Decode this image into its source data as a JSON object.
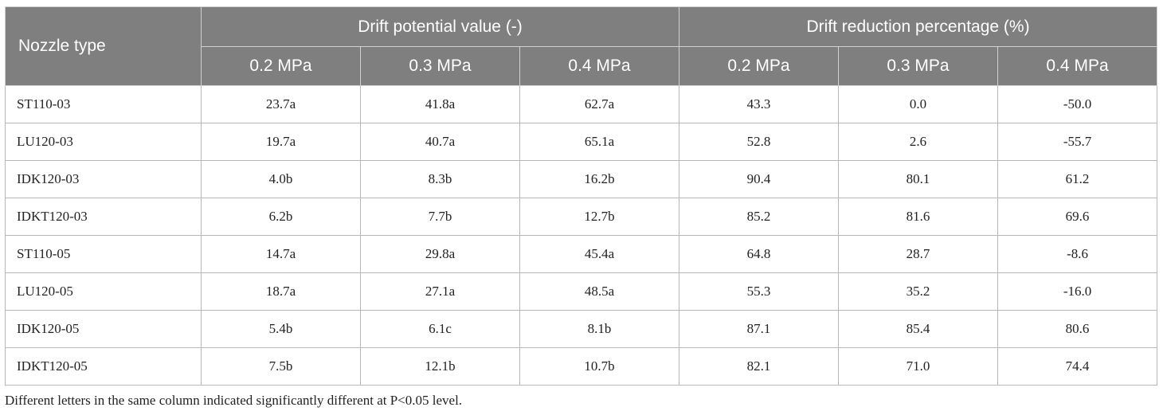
{
  "table": {
    "row_header": "Nozzle type",
    "groups": [
      {
        "label": "Drift potential value (-)"
      },
      {
        "label": "Drift reduction percentage (%)"
      }
    ],
    "pressures": [
      "0.2 MPa",
      "0.3 MPa",
      "0.4 MPa",
      "0.2 MPa",
      "0.3 MPa",
      "0.4 MPa"
    ],
    "rows": [
      {
        "nozzle": "ST110-03",
        "values": [
          "23.7a",
          "41.8a",
          "62.7a",
          "43.3",
          "0.0",
          "-50.0"
        ]
      },
      {
        "nozzle": "LU120-03",
        "values": [
          "19.7a",
          "40.7a",
          "65.1a",
          "52.8",
          "2.6",
          "-55.7"
        ]
      },
      {
        "nozzle": "IDK120-03",
        "values": [
          "4.0b",
          "8.3b",
          "16.2b",
          "90.4",
          "80.1",
          "61.2"
        ]
      },
      {
        "nozzle": "IDKT120-03",
        "values": [
          "6.2b",
          "7.7b",
          "12.7b",
          "85.2",
          "81.6",
          "69.6"
        ]
      },
      {
        "nozzle": "ST110-05",
        "values": [
          "14.7a",
          "29.8a",
          "45.4a",
          "64.8",
          "28.7",
          "-8.6"
        ]
      },
      {
        "nozzle": "LU120-05",
        "values": [
          "18.7a",
          "27.1a",
          "48.5a",
          "55.3",
          "35.2",
          "-16.0"
        ]
      },
      {
        "nozzle": "IDK120-05",
        "values": [
          "5.4b",
          "6.1c",
          "8.1b",
          "87.1",
          "85.4",
          "80.6"
        ]
      },
      {
        "nozzle": "IDKT120-05",
        "values": [
          "7.5b",
          "12.1b",
          "10.7b",
          "82.1",
          "71.0",
          "74.4"
        ]
      }
    ],
    "footnote": "Different letters in the same column indicated significantly different at P<0.05 level."
  },
  "colors": {
    "header_bg": "#7f7f7f",
    "header_text": "#ffffff",
    "grid": "#b8b8b8"
  }
}
